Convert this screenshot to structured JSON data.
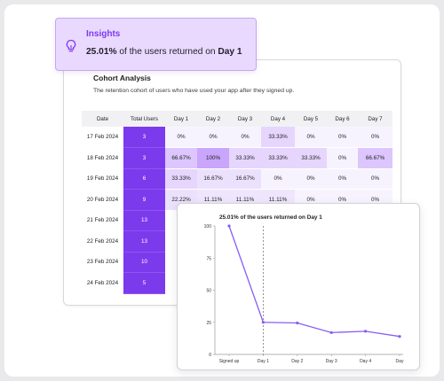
{
  "insights": {
    "title": "Insights",
    "stat_value": "25.01%",
    "stat_text": " of the users returned on ",
    "stat_day": "Day 1",
    "icon": "lightbulb-icon",
    "accent_color": "#7c3aed"
  },
  "cohort": {
    "title": "Cohort Analysis",
    "subtitle": "The retention cohort of users who have used your app after they signed up.",
    "columns": [
      "Date",
      "Total Users",
      "Day 1",
      "Day 2",
      "Day 3",
      "Day 4",
      "Day 5",
      "Day 6",
      "Day 7"
    ],
    "rows": [
      {
        "date": "17 Feb 2024",
        "total": "3",
        "days": [
          "0%",
          "0%",
          "0%",
          "33.33%",
          "0%",
          "0%",
          "0%"
        ]
      },
      {
        "date": "18 Feb 2024",
        "total": "3",
        "days": [
          "66.67%",
          "100%",
          "33.33%",
          "33.33%",
          "33.33%",
          "0%",
          "66.67%"
        ]
      },
      {
        "date": "19 Feb 2024",
        "total": "6",
        "days": [
          "33.33%",
          "16.67%",
          "16.67%",
          "0%",
          "0%",
          "0%",
          "0%"
        ]
      },
      {
        "date": "20 Feb 2024",
        "total": "9",
        "days": [
          "22.22%",
          "11.11%",
          "11.11%",
          "11.11%",
          "0%",
          "0%",
          "0%"
        ]
      },
      {
        "date": "21 Feb 2024",
        "total": "13",
        "days": [
          "",
          "",
          "",
          "",
          "",
          "",
          ""
        ]
      },
      {
        "date": "22 Feb 2024",
        "total": "13",
        "days": [
          "",
          "",
          "",
          "",
          "",
          "",
          ""
        ]
      },
      {
        "date": "23 Feb 2024",
        "total": "10",
        "days": [
          "",
          "",
          "",
          "",
          "",
          "",
          ""
        ]
      },
      {
        "date": "24 Feb 2024",
        "total": "5",
        "days": [
          "",
          "",
          "",
          "",
          "",
          "",
          ""
        ]
      }
    ]
  },
  "chart_data": {
    "type": "line",
    "title": "25.01% of the users returned on Day 1",
    "x": [
      "Signed up",
      "Day 1",
      "Day 2",
      "Day 3",
      "Day 4",
      "Day"
    ],
    "y_ticks": [
      "100",
      "75",
      "50",
      "25",
      "0"
    ],
    "ylim": [
      0,
      100
    ],
    "series": [
      {
        "values": [
          100,
          25,
          24.5,
          17,
          18,
          14
        ]
      }
    ],
    "marker_at": "Day 1",
    "line_color": "#8b5cf6"
  }
}
